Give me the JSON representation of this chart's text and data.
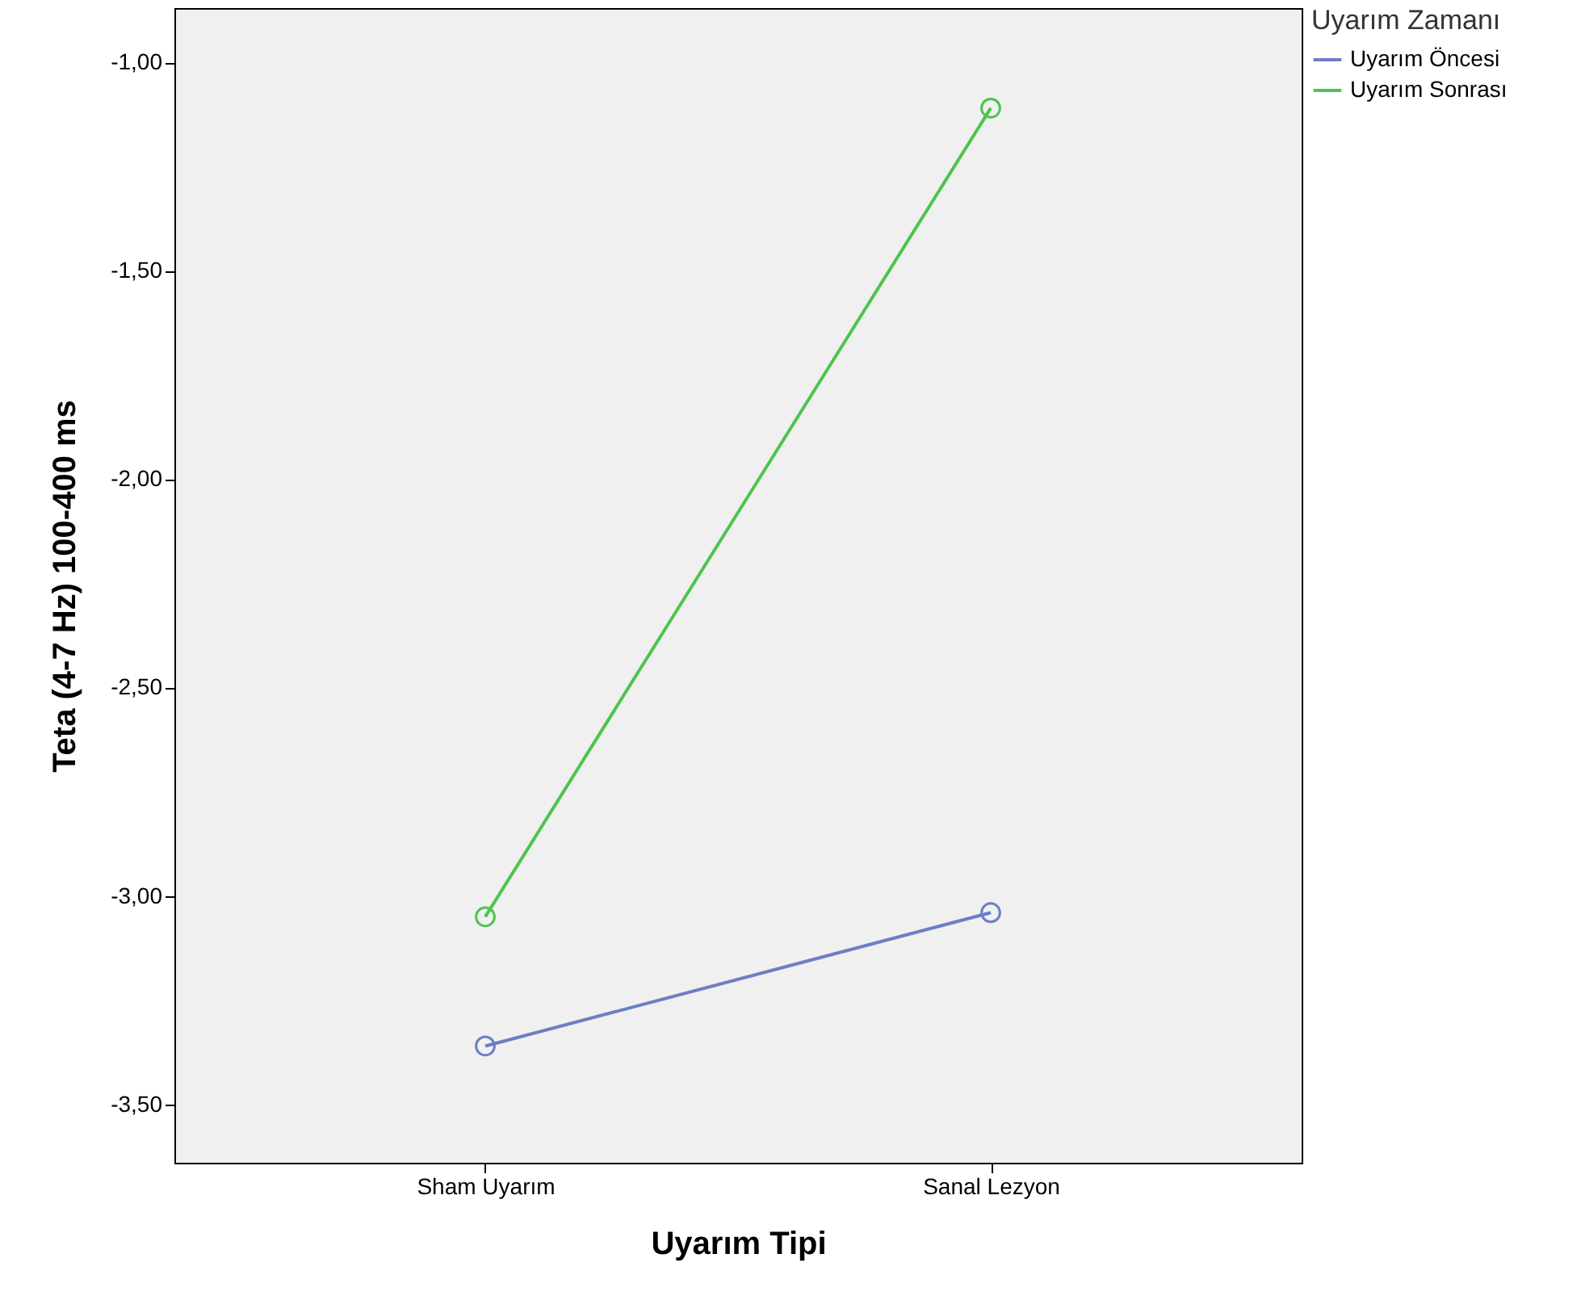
{
  "chart_data": {
    "type": "line",
    "xlabel": "Uyarım Tipi",
    "ylabel": "Teta (4-7 Hz) 100-400 ms",
    "legend_title": "Uyarım Zamanı",
    "categories": [
      "Sham Uyarım",
      "Sanal Lezyon"
    ],
    "series": [
      {
        "name": "Uyarım Öncesi",
        "color": "#6b7fc4",
        "values": [
          -3.36,
          -3.04
        ]
      },
      {
        "name": "Uyarım Sonrası",
        "color": "#4fc34f",
        "values": [
          -3.05,
          -1.11
        ]
      }
    ],
    "ylim": [
      -3.64,
      -0.87
    ],
    "yticks": [
      {
        "value": -3.5,
        "label": "-3,50"
      },
      {
        "value": -3,
        "label": "-3,00"
      },
      {
        "value": -2.5,
        "label": "-2,50"
      },
      {
        "value": -2,
        "label": "-2,00"
      },
      {
        "value": -1.5,
        "label": "-1,50"
      },
      {
        "value": -1,
        "label": "-1,00"
      }
    ],
    "marker": "circle",
    "legend": "top right",
    "grid": false
  }
}
